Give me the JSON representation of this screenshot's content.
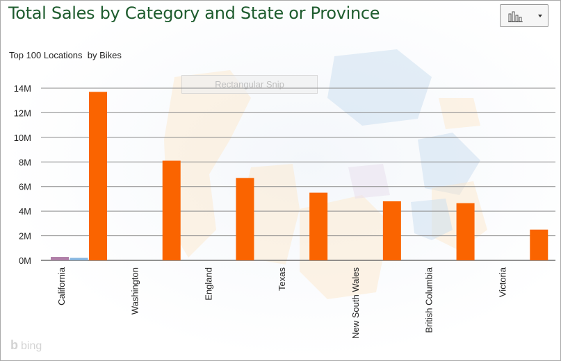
{
  "title": "Total Sales by Category and State or Province",
  "subtitle": "Top 100 Locations  by Bikes",
  "overlay_label": "Rectangular Snip",
  "watermark": "bing",
  "chart_type_button_icon": "bar-chart-icon",
  "colors": {
    "title": "#1e5c2e",
    "bikes": "#fa6400",
    "accessories": "#b07fa8",
    "clothing": "#86b6e0"
  },
  "chart_data": {
    "type": "bar",
    "categories": [
      "California",
      "Washington",
      "England",
      "Texas",
      "New South Wales",
      "British Columbia",
      "Victoria"
    ],
    "series": [
      {
        "values": [
          0.28,
          0,
          0,
          0,
          0,
          0,
          0
        ]
      },
      {
        "values": [
          0.2,
          0,
          0,
          0,
          0,
          0,
          0
        ]
      },
      {
        "values": [
          13.7,
          8.1,
          6.7,
          5.5,
          4.8,
          4.65,
          2.5
        ]
      }
    ],
    "y_ticks": [
      "0M",
      "2M",
      "4M",
      "6M",
      "8M",
      "10M",
      "12M",
      "14M"
    ],
    "ylim": [
      0,
      14
    ],
    "grid": true
  }
}
